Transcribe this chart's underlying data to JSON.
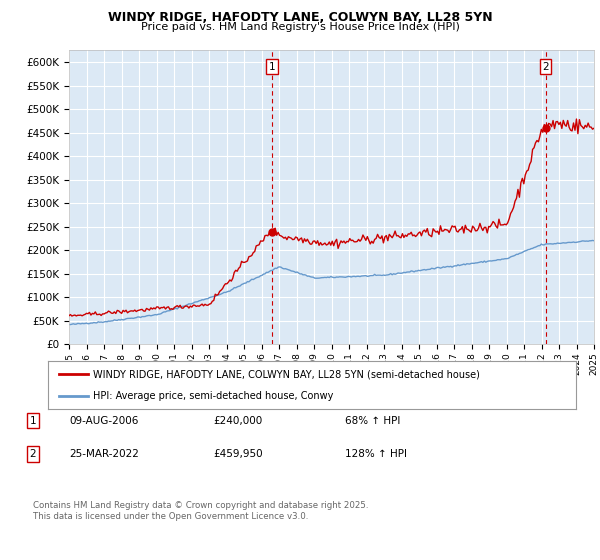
{
  "title": "WINDY RIDGE, HAFODTY LANE, COLWYN BAY, LL28 5YN",
  "subtitle": "Price paid vs. HM Land Registry's House Price Index (HPI)",
  "ylabel_ticks": [
    "£0",
    "£50K",
    "£100K",
    "£150K",
    "£200K",
    "£250K",
    "£300K",
    "£350K",
    "£400K",
    "£450K",
    "£500K",
    "£550K",
    "£600K"
  ],
  "ytick_values": [
    0,
    50000,
    100000,
    150000,
    200000,
    250000,
    300000,
    350000,
    400000,
    450000,
    500000,
    550000,
    600000
  ],
  "ylim": [
    0,
    625000
  ],
  "x_start_year": 1995,
  "x_end_year": 2025,
  "sale1_date": 2006.6,
  "sale1_price": 240000,
  "sale1_label": "1",
  "sale2_date": 2022.23,
  "sale2_price": 459950,
  "sale2_label": "2",
  "red_line_color": "#cc0000",
  "blue_line_color": "#6699cc",
  "plot_bg_color": "#dce9f5",
  "dashed_vline_color": "#cc0000",
  "grid_color": "#ffffff",
  "bg_color": "#ffffff",
  "legend_line1": "WINDY RIDGE, HAFODTY LANE, COLWYN BAY, LL28 5YN (semi-detached house)",
  "legend_line2": "HPI: Average price, semi-detached house, Conwy",
  "annotation1_date": "09-AUG-2006",
  "annotation1_price": "£240,000",
  "annotation1_hpi": "68% ↑ HPI",
  "annotation2_date": "25-MAR-2022",
  "annotation2_price": "£459,950",
  "annotation2_hpi": "128% ↑ HPI",
  "footer": "Contains HM Land Registry data © Crown copyright and database right 2025.\nThis data is licensed under the Open Government Licence v3.0."
}
